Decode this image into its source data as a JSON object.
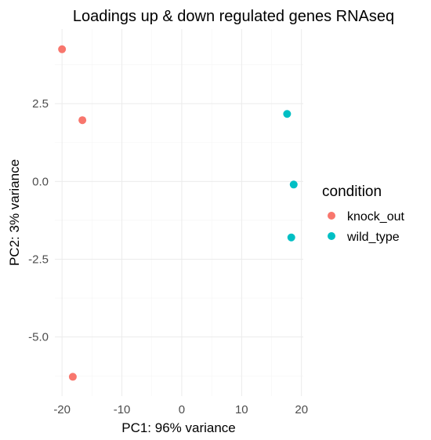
{
  "chart_data": {
    "type": "scatter",
    "title": "Loadings up & down regulated genes RNAseq",
    "xlabel": "PC1: 96% variance",
    "ylabel": "PC2: 3% variance",
    "xlim": [
      -21.2,
      20.3
    ],
    "ylim": [
      -6.9,
      4.9
    ],
    "x_ticks": [
      -20,
      -10,
      0,
      10,
      20
    ],
    "x_tick_labels": [
      "-20",
      "-10",
      "0",
      "10",
      "20"
    ],
    "y_ticks": [
      -5,
      -2.5,
      0,
      2.5
    ],
    "y_tick_labels": [
      "-5.0",
      "-2.5",
      "0.0",
      "2.5"
    ],
    "grid": true,
    "legend": {
      "title": "condition",
      "position": "right"
    },
    "series": [
      {
        "name": "knock_out",
        "color": "#F8766D",
        "points": [
          {
            "x": -20.0,
            "y": 4.25
          },
          {
            "x": -16.6,
            "y": 1.97
          },
          {
            "x": -18.2,
            "y": -6.28
          }
        ]
      },
      {
        "name": "wild_type",
        "color": "#00BFC4",
        "points": [
          {
            "x": 17.6,
            "y": 2.17
          },
          {
            "x": 18.7,
            "y": -0.1
          },
          {
            "x": 18.3,
            "y": -1.8
          }
        ]
      }
    ]
  }
}
